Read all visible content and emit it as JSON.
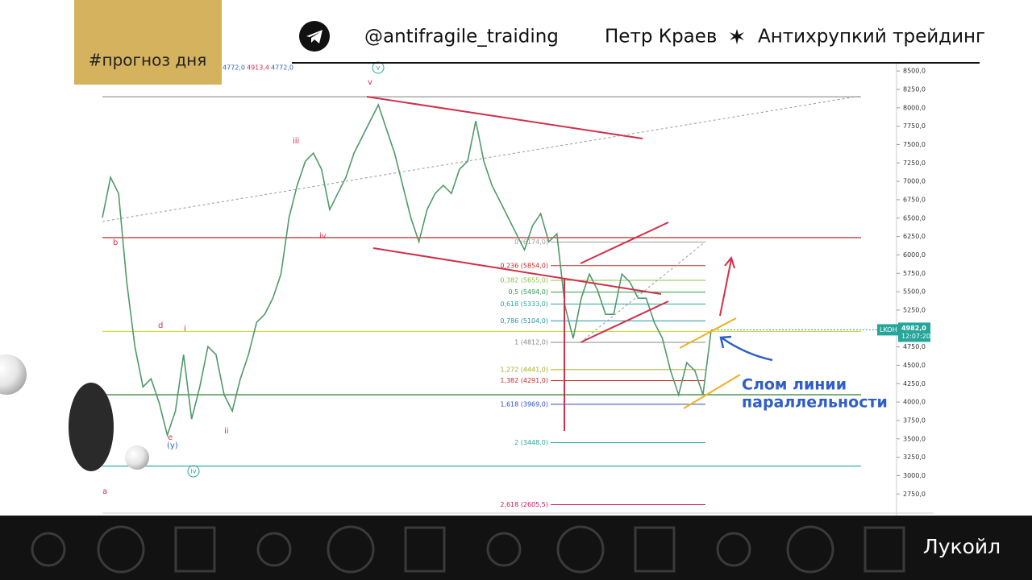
{
  "header": {
    "tag": "#прогноз дня",
    "handle": "@antifragile_traiding",
    "author": "Петр Краев",
    "brand": "Антихрупкий трейдинг"
  },
  "chart_data": {
    "type": "line",
    "ohlc": [
      "4772,0",
      "4913,4",
      "4772,0"
    ],
    "categories": [
      null,
      null,
      null,
      null,
      null,
      null,
      null,
      null,
      null,
      null,
      null,
      null,
      null,
      null,
      null,
      null,
      null,
      null,
      null,
      null,
      null,
      null,
      null,
      null,
      null,
      null,
      null,
      null,
      null,
      null,
      null,
      null,
      null,
      null,
      null,
      null,
      null,
      null,
      null,
      null,
      null,
      null,
      null,
      null,
      null,
      null,
      null,
      null,
      null,
      null,
      null,
      null,
      null,
      null,
      null,
      null,
      null,
      null,
      null,
      null,
      null,
      null,
      null,
      null,
      null,
      null,
      null,
      null,
      null,
      null,
      null,
      null,
      null,
      null,
      null,
      null
    ],
    "values": [
      6507,
      7054,
      6835,
      5630,
      4754,
      4207,
      4316,
      3988,
      3550,
      3878,
      4645,
      3769,
      4207,
      4754,
      4645,
      4097,
      3878,
      4316,
      4645,
      5083,
      5192,
      5411,
      5740,
      6507,
      6945,
      7273,
      7383,
      7164,
      6616,
      6835,
      7054,
      7383,
      7602,
      7821,
      8040,
      7711,
      7383,
      6945,
      6507,
      6178,
      6616,
      6835,
      6945,
      6835,
      7164,
      7273,
      7821,
      7273,
      6945,
      6726,
      6507,
      6287,
      6068,
      6397,
      6561,
      6178,
      6287,
      5302,
      4864,
      5411,
      5740,
      5521,
      5192,
      5192,
      5740,
      5630,
      5411,
      5411,
      5083,
      4864,
      4426,
      4097,
      4535,
      4426,
      4097,
      4973
    ],
    "color": "#4f9a68",
    "ylim": [
      2490,
      8600
    ],
    "yticks": [
      {
        "value": 2750,
        "label": "2750,0"
      },
      {
        "value": 3000,
        "label": "3000,0"
      },
      {
        "value": 3250,
        "label": "3250,0"
      },
      {
        "value": 3500,
        "label": "3500,0"
      },
      {
        "value": 3750,
        "label": "3750,0"
      },
      {
        "value": 4000,
        "label": "4000,0"
      },
      {
        "value": 4250,
        "label": "4250,0"
      },
      {
        "value": 4500,
        "label": "4500,0"
      },
      {
        "value": 4750,
        "label": "4750,0"
      },
      {
        "value": 5000,
        "label": "5000,0"
      },
      {
        "value": 5250,
        "label": "5250,0"
      },
      {
        "value": 5500,
        "label": "5500,0"
      },
      {
        "value": 5750,
        "label": "5750,0"
      },
      {
        "value": 6000,
        "label": "6000,0"
      },
      {
        "value": 6250,
        "label": "6250,0"
      },
      {
        "value": 6500,
        "label": "6500,0"
      },
      {
        "value": 6750,
        "label": "6750,0"
      },
      {
        "value": 7000,
        "label": "7000,0"
      },
      {
        "value": 7250,
        "label": "7250,0"
      },
      {
        "value": 7500,
        "label": "7500,0"
      },
      {
        "value": 7750,
        "label": "7750,0"
      },
      {
        "value": 8000,
        "label": "8000,0"
      },
      {
        "value": 8250,
        "label": "8250,0"
      },
      {
        "value": 8500,
        "label": "8500,0"
      }
    ],
    "levels": [
      {
        "value": 8150,
        "color": "#999999"
      },
      {
        "value": 6235,
        "color": "#c62828"
      },
      {
        "value": 4960,
        "color": "#cddc39"
      },
      {
        "value": 4100,
        "color": "#2e7d32"
      },
      {
        "value": 3130,
        "color": "#26a69a"
      }
    ],
    "fib_levels": [
      {
        "label": "0 (6174,0)",
        "value": 6174,
        "color": "#9e9e9e"
      },
      {
        "label": "0,236 (5854,0)",
        "value": 5854,
        "color": "#c62828"
      },
      {
        "label": "0,382 (5655,0)",
        "value": 5655,
        "color": "#8bc34a"
      },
      {
        "label": "0,5 (5494,0)",
        "value": 5494,
        "color": "#2e9e4a"
      },
      {
        "label": "0,618 (5333,0)",
        "value": 5333,
        "color": "#26a69a"
      },
      {
        "label": "0,786 (5104,0)",
        "value": 5104,
        "color": "#2196a3"
      },
      {
        "label": "1 (4812,0)",
        "value": 4812,
        "color": "#888888"
      },
      {
        "label": "1,272 (4441,0)",
        "value": 4441,
        "color": "#a0b020"
      },
      {
        "label": "1,382 (4291,0)",
        "value": 4291,
        "color": "#c62828"
      },
      {
        "label": "1,618 (3969,0)",
        "value": 3969,
        "color": "#2a52be"
      },
      {
        "label": "2 (3448,0)",
        "value": 3448,
        "color": "#26a69a"
      },
      {
        "label": "2,618 (2605,5)",
        "value": 2605.5,
        "color": "#c2185b"
      }
    ],
    "wave_labels": [
      "v",
      "iii",
      "iv",
      "i",
      "ii",
      "b",
      "d",
      "e",
      "(y)",
      "a"
    ],
    "circled_labels": [
      "v",
      "iv"
    ],
    "price_tag": {
      "ticker": "LKOH",
      "price": {
        "value": 4982,
        "label": "4982,0"
      },
      "time": "12:07:20"
    },
    "annotation": [
      "Слом линии",
      "параллельности"
    ],
    "footer": "Лукойл"
  }
}
